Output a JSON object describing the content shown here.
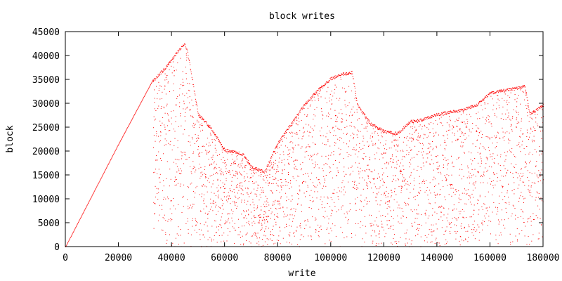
{
  "chart_data": {
    "type": "scatter",
    "title": "block writes",
    "xlabel": "write",
    "ylabel": "block",
    "xlim": [
      0,
      180000
    ],
    "ylim": [
      0,
      45000
    ],
    "xticks": [
      "0",
      "20000",
      "40000",
      "60000",
      "80000",
      "100000",
      "120000",
      "140000",
      "160000",
      "180000"
    ],
    "yticks": [
      "0",
      "5000",
      "10000",
      "15000",
      "20000",
      "25000",
      "30000",
      "35000",
      "40000",
      "45000"
    ],
    "xtick_values": [
      0,
      20000,
      40000,
      60000,
      80000,
      100000,
      120000,
      140000,
      160000,
      180000
    ],
    "ytick_values": [
      0,
      5000,
      10000,
      15000,
      20000,
      25000,
      30000,
      35000,
      40000,
      45000
    ],
    "grid": false,
    "legend": "none",
    "series": [
      {
        "color": "#ff0000",
        "mode": "points",
        "envelope_x": [
          0,
          20000,
          33000,
          38000,
          42000,
          45000,
          46000,
          50000,
          55000,
          60000,
          65000,
          67000,
          70000,
          75000,
          80000,
          85000,
          90000,
          95000,
          100000,
          105000,
          108000,
          110000,
          115000,
          120000,
          125000,
          130000,
          135000,
          140000,
          145000,
          150000,
          155000,
          160000,
          165000,
          170000,
          173000,
          175000,
          180000
        ],
        "envelope_y": [
          0,
          21500,
          35000,
          38000,
          41000,
          42800,
          41000,
          28000,
          25000,
          20500,
          20000,
          19500,
          17000,
          16000,
          22000,
          26000,
          30000,
          33000,
          35500,
          36500,
          36800,
          30000,
          26000,
          24500,
          24000,
          26500,
          27000,
          28000,
          28500,
          29000,
          30000,
          32500,
          33000,
          33500,
          34000,
          28000,
          30000
        ]
      }
    ]
  }
}
